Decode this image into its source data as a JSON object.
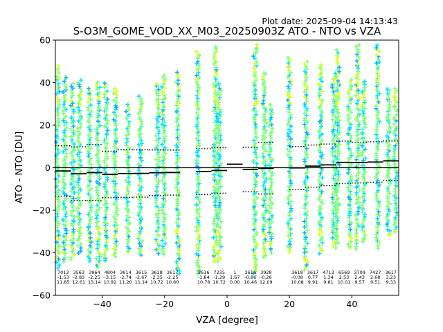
{
  "chart_data": {
    "type": "scatter",
    "plot_date": "Plot date: 2025-09-04 14:13:43",
    "title": "S-O3M_GOME_VOD_XX_M03_20250903Z ATO - NTO vs VZA",
    "xlabel": "VZA [degree]",
    "ylabel": "ATO - NTO [DU]",
    "xlim": [
      -55,
      55
    ],
    "ylim": [
      -60,
      60
    ],
    "xticks": [
      -40,
      -20,
      0,
      20,
      40
    ],
    "xtick_labels": [
      "−40",
      "−20",
      "0",
      "20",
      "40"
    ],
    "yticks": [
      -60,
      -40,
      -20,
      0,
      20,
      40,
      60
    ],
    "ytick_labels": [
      "−60",
      "−40",
      "−20",
      "0",
      "20",
      "40",
      "60"
    ],
    "colors": {
      "axis": "#000000",
      "mean": "#000000",
      "scatter": [
        "#00e5ff",
        "#00b4ff",
        "#7dff7a",
        "#d6ff1f",
        "#ffd000",
        "#52ff9a"
      ]
    },
    "bins": [
      {
        "x": -52.5,
        "count": "7013",
        "mean": -1.53,
        "std": 11.85,
        "mean_label": "-1.53",
        "std_label": "11.85"
      },
      {
        "x": -47.5,
        "count": "3563",
        "mean": -2.83,
        "std": 12.61,
        "mean_label": "-2.83",
        "std_label": "12.61"
      },
      {
        "x": -42.5,
        "count": "3964",
        "mean": -2.25,
        "std": 13.14,
        "mean_label": "-2.25",
        "std_label": "13.14"
      },
      {
        "x": -37.5,
        "count": "4804",
        "mean": -3.15,
        "std": 10.92,
        "mean_label": "-3.15",
        "std_label": "10.92"
      },
      {
        "x": -32.5,
        "count": "3614",
        "mean": -2.74,
        "std": 11.2,
        "mean_label": "-2.74",
        "std_label": "11.20"
      },
      {
        "x": -27.5,
        "count": "3615",
        "mean": -2.67,
        "std": 11.14,
        "mean_label": "-2.67",
        "std_label": "11.14"
      },
      {
        "x": -22.5,
        "count": "3618",
        "mean": -2.35,
        "std": 10.72,
        "mean_label": "-2.35",
        "std_label": "10.72"
      },
      {
        "x": -17.5,
        "count": "3617",
        "mean": -2.25,
        "std": 10.6,
        "mean_label": "-2.25",
        "std_label": "10.60"
      },
      {
        "x": -7.5,
        "count": "3616",
        "mean": -1.84,
        "std": 10.78,
        "mean_label": "-1.84",
        "std_label": "10.78"
      },
      {
        "x": -2.5,
        "count": "7235",
        "mean": -1.29,
        "std": 10.72,
        "mean_label": "-1.29",
        "std_label": "10.72"
      },
      {
        "x": 2.5,
        "count": "1",
        "mean": 1.67,
        "std": 0.0,
        "mean_label": "1.67",
        "std_label": "0.00"
      },
      {
        "x": 7.5,
        "count": "3616",
        "mean": -0.86,
        "std": 10.46,
        "mean_label": "-0.86",
        "std_label": "10.46"
      },
      {
        "x": 12.5,
        "count": "3928",
        "mean": -0.26,
        "std": 12.09,
        "mean_label": "-0.26",
        "std_label": "12.09"
      },
      {
        "x": 22.5,
        "count": "3618",
        "mean": -0.08,
        "std": 10.08,
        "mean_label": "-0.08",
        "std_label": "10.08"
      },
      {
        "x": 27.5,
        "count": "3617",
        "mean": 0.77,
        "std": 9.91,
        "mean_label": "0.77",
        "std_label": "9.91"
      },
      {
        "x": 32.5,
        "count": "4713",
        "mean": 1.34,
        "std": 9.81,
        "mean_label": "1.34",
        "std_label": "9.81"
      },
      {
        "x": 37.5,
        "count": "6569",
        "mean": 2.53,
        "std": 10.01,
        "mean_label": "2.53",
        "std_label": "10.01"
      },
      {
        "x": 42.5,
        "count": "3709",
        "mean": 2.43,
        "std": 9.57,
        "mean_label": "2.43",
        "std_label": "9.57"
      },
      {
        "x": 47.5,
        "count": "7427",
        "mean": 2.68,
        "std": 9.51,
        "mean_label": "2.68",
        "std_label": "9.51"
      },
      {
        "x": 52.5,
        "count": "3617",
        "mean": 3.23,
        "std": 9.33,
        "mean_label": "3.23",
        "std_label": "9.33"
      }
    ],
    "scatter_columns": [
      {
        "x": -54.3,
        "ymin": -47,
        "ymax": 48
      },
      {
        "x": -52.0,
        "ymin": -44,
        "ymax": 44
      },
      {
        "x": -49.5,
        "ymin": -43,
        "ymax": 40
      },
      {
        "x": -47.3,
        "ymin": -40,
        "ymax": 42
      },
      {
        "x": -44.0,
        "ymin": -44,
        "ymax": 38
      },
      {
        "x": -41.3,
        "ymin": -47,
        "ymax": 40
      },
      {
        "x": -38.8,
        "ymin": -44,
        "ymax": 40
      },
      {
        "x": -35.8,
        "ymin": -42,
        "ymax": 38
      },
      {
        "x": -31.8,
        "ymin": -40,
        "ymax": 30
      },
      {
        "x": -27.8,
        "ymin": -41,
        "ymax": 34
      },
      {
        "x": -22.3,
        "ymin": -40,
        "ymax": 40
      },
      {
        "x": -20.3,
        "ymin": -41,
        "ymax": 44
      },
      {
        "x": -15.8,
        "ymin": -50,
        "ymax": 45
      },
      {
        "x": -9.3,
        "ymin": -50,
        "ymax": 55
      },
      {
        "x": -3.8,
        "ymin": -44,
        "ymax": 58
      },
      {
        "x": -2.5,
        "ymin": -44,
        "ymax": 40
      },
      {
        "x": 9.0,
        "ymin": -50,
        "ymax": 58
      },
      {
        "x": 12.0,
        "ymin": -42,
        "ymax": 45
      },
      {
        "x": 14.0,
        "ymin": -40,
        "ymax": 30
      },
      {
        "x": 20.0,
        "ymin": -40,
        "ymax": 52
      },
      {
        "x": 25.3,
        "ymin": -48,
        "ymax": 50
      },
      {
        "x": 30.0,
        "ymin": -40,
        "ymax": 49
      },
      {
        "x": 34.3,
        "ymin": -38,
        "ymax": 45
      },
      {
        "x": 35.5,
        "ymin": -35,
        "ymax": 56
      },
      {
        "x": 39.3,
        "ymin": -38,
        "ymax": 42
      },
      {
        "x": 41.8,
        "ymin": -38,
        "ymax": 58
      },
      {
        "x": 43.8,
        "ymin": -35,
        "ymax": 42
      },
      {
        "x": 48.3,
        "ymin": -38,
        "ymax": 58
      },
      {
        "x": 51.8,
        "ymin": -32,
        "ymax": 38
      },
      {
        "x": 54.0,
        "ymin": -30,
        "ymax": 38
      }
    ]
  }
}
